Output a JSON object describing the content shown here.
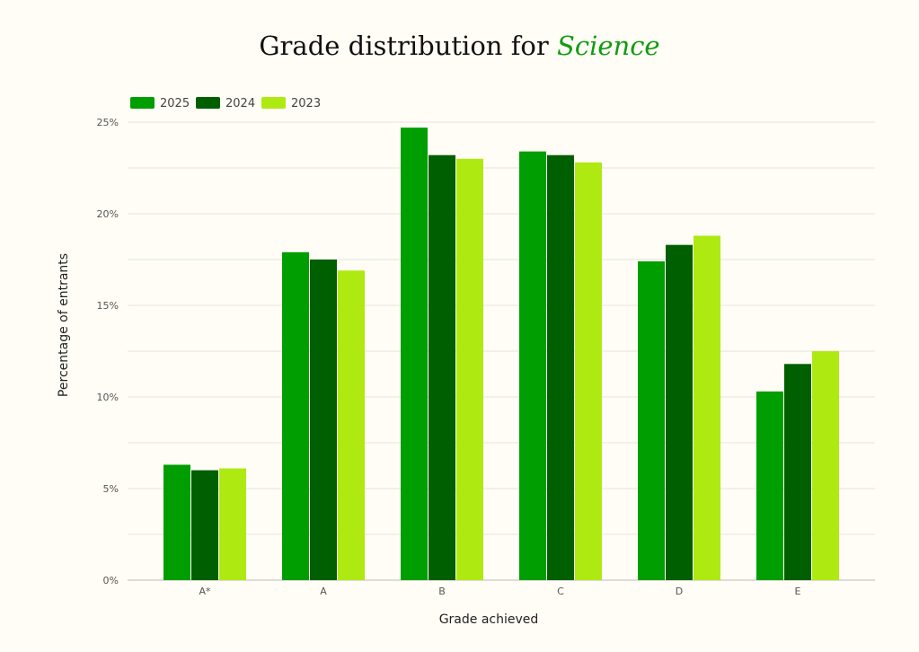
{
  "chart_data": {
    "type": "bar",
    "title": "Grade distribution for",
    "title_highlight": "Science",
    "xlabel": "Grade achieved",
    "ylabel": "Percentage of entrants",
    "categories": [
      "A*",
      "A",
      "B",
      "C",
      "D",
      "E"
    ],
    "ylim": [
      0,
      25
    ],
    "yticks": [
      "0%",
      "5%",
      "10%",
      "15%",
      "20%",
      "25%"
    ],
    "grid": true,
    "legend": "top-left",
    "series": [
      {
        "name": "2025",
        "color": "#009e00",
        "values": [
          6.3,
          17.9,
          24.7,
          23.4,
          17.4,
          10.3
        ]
      },
      {
        "name": "2024",
        "color": "#005f00",
        "values": [
          6.0,
          17.5,
          23.2,
          23.2,
          18.3,
          11.8
        ]
      },
      {
        "name": "2023",
        "color": "#aeea12",
        "values": [
          6.1,
          16.9,
          23.0,
          22.8,
          18.8,
          12.5
        ]
      }
    ]
  }
}
